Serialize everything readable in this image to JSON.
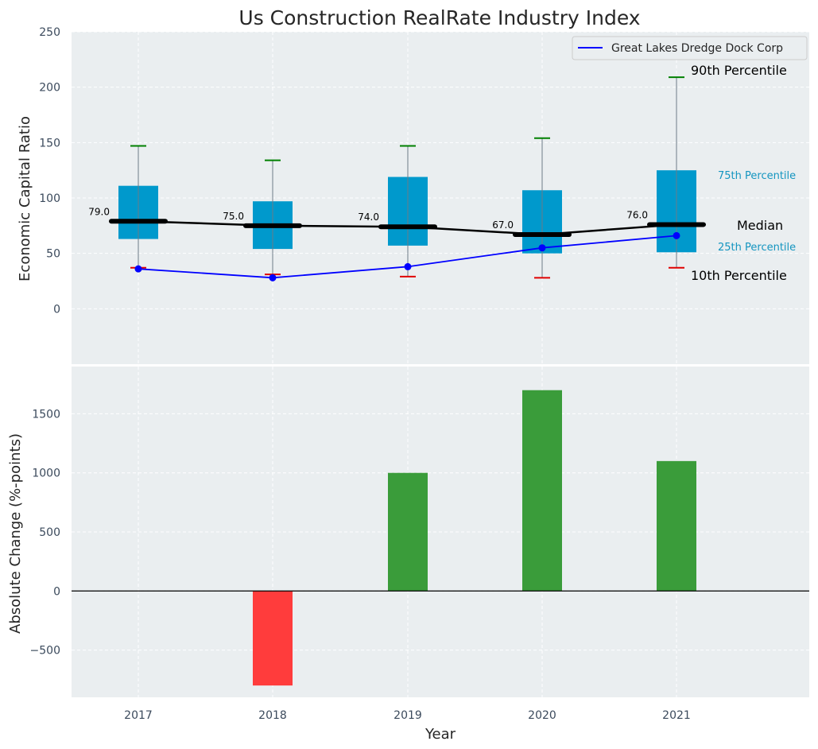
{
  "chart_data": {
    "title": "Us Construction RealRate Industry Index",
    "xlabel": "Year",
    "categories": [
      "2017",
      "2018",
      "2019",
      "2020",
      "2021"
    ],
    "top_panel": {
      "type": "box",
      "ylabel": "Economic Capital Ratio",
      "ylim": [
        -50,
        250
      ],
      "yticks": [
        0,
        50,
        100,
        150,
        200,
        250
      ],
      "boxes": [
        {
          "year": "2017",
          "p10": 37,
          "p25": 63,
          "median": 79,
          "p75": 111,
          "p90": 147,
          "median_label": "79.0"
        },
        {
          "year": "2018",
          "p10": 31,
          "p25": 54,
          "median": 75,
          "p75": 97,
          "p90": 134,
          "median_label": "75.0"
        },
        {
          "year": "2019",
          "p10": 29,
          "p25": 57,
          "median": 74,
          "p75": 119,
          "p90": 147,
          "median_label": "74.0"
        },
        {
          "year": "2020",
          "p10": 28,
          "p25": 50,
          "median": 67,
          "p75": 107,
          "p90": 154,
          "median_label": "67.0"
        },
        {
          "year": "2021",
          "p10": 37,
          "p25": 51,
          "median": 76,
          "p75": 125,
          "p90": 209,
          "median_label": "76.0"
        }
      ],
      "company_series": {
        "name": "Great Lakes Dredge Dock Corp",
        "values": [
          36,
          28,
          38,
          55,
          66
        ],
        "color": "#0000ff"
      },
      "annotations": {
        "p90": "90th Percentile",
        "p75": "75th Percentile",
        "median": "Median",
        "p25": "25th Percentile",
        "p10": "10th Percentile"
      },
      "legend_position": "top-right"
    },
    "bottom_panel": {
      "type": "bar",
      "ylabel": "Absolute Change (%-points)",
      "ylim": [
        -900,
        1900
      ],
      "yticks": [
        -500,
        0,
        500,
        1000,
        1500
      ],
      "ytick_labels": [
        "−500",
        "0",
        "500",
        "1000",
        "1500"
      ],
      "values": [
        0,
        -800,
        1000,
        1700,
        1100
      ]
    },
    "colors": {
      "box": "#0099cc",
      "median": "#000000",
      "whisker_top": "#008000",
      "whisker_bottom": "#e00000",
      "bar_positive": "#3a9c3a",
      "bar_negative": "#ff3c3c",
      "panel_bg": "#eaeef0",
      "grid": "#ffffff"
    }
  }
}
